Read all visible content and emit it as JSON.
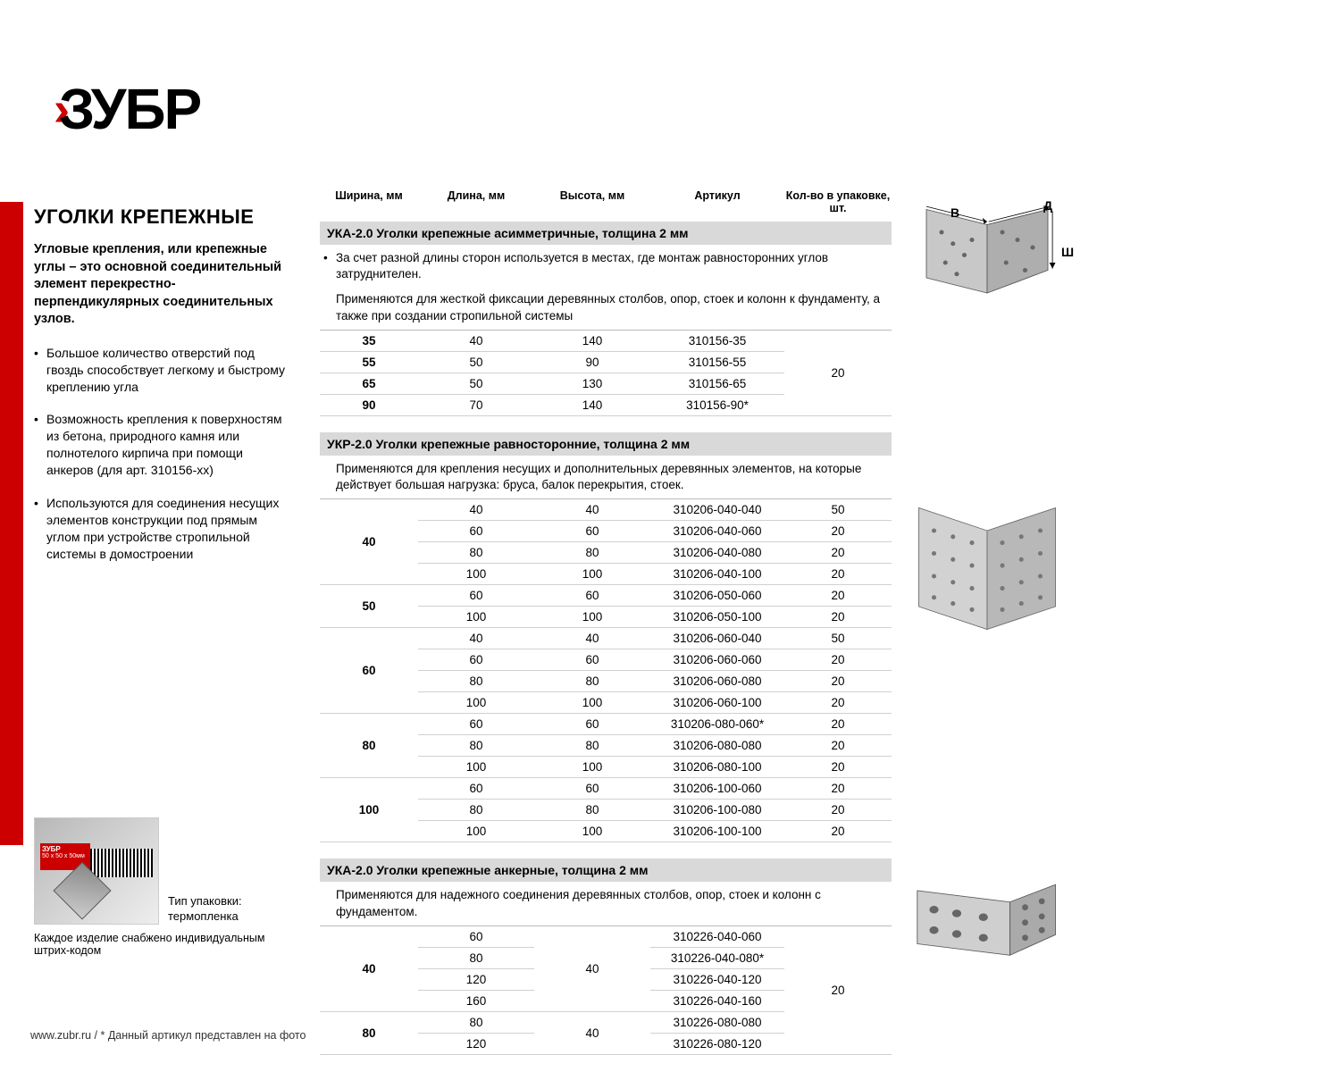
{
  "logo": {
    "brand": "ЗУБР"
  },
  "sidebar": {
    "title": "УГОЛКИ КРЕПЕЖНЫЕ",
    "intro": "Угловые крепления, или крепежные углы – это основной соединительный элемент перекрестно-перпендикулярных соединительных узлов.",
    "bullets": [
      "Большое количество отверстий под гвоздь способствует легкому и быстрому креплению угла",
      "Возможность крепления к поверхностям из бетона, природного камня или полнотелого кирпича при помощи анкеров (для арт. 310156-хх)",
      "Используются для соединения несущих элементов конструкции под прямым углом при устройстве стропильной системы в домостроении"
    ]
  },
  "packaging": {
    "label": "Тип упаковки:",
    "type": "термопленка",
    "note": "Каждое изделие снабжено индивидуальным штрих-кодом",
    "badge_brand": "ЗУБР",
    "badge_line2": "50 x 50 x 50мм"
  },
  "footer": "www.zubr.ru    /    * Данный артикул представлен на фото",
  "columns": [
    "Ширина, мм",
    "Длина, мм",
    "Высота, мм",
    "Артикул",
    "Кол-во в упаковке, шт."
  ],
  "sections": [
    {
      "title": "УКА-2.0  Уголки крепежные асимметричные, толщина 2 мм",
      "desc_bullet": "За счет разной длины сторон используется в местах, где монтаж равносторонних углов затруднителен.",
      "desc_plain": "Применяются для жесткой фиксации деревянных столбов, опор, стоек и колонн к фундаменту, а также при создании стропильной системы",
      "rows": [
        {
          "w": "35",
          "l": "40",
          "h": "140",
          "art": "310156-35",
          "qty": "20",
          "qty_span": 4
        },
        {
          "w": "55",
          "l": "50",
          "h": "90",
          "art": "310156-55"
        },
        {
          "w": "65",
          "l": "50",
          "h": "130",
          "art": "310156-65"
        },
        {
          "w": "90",
          "l": "70",
          "h": "140",
          "art": "310156-90*"
        }
      ]
    },
    {
      "title": "УКР-2.0  Уголки крепежные равносторонние, толщина 2 мм",
      "desc_plain": "Применяются для крепления несущих и дополнительных деревянных элементов, на которые действует большая нагрузка: бруса, балок перекрытия, стоек.",
      "rows": [
        {
          "w": "40",
          "w_span": 4,
          "l": "40",
          "h": "40",
          "art": "310206-040-040",
          "qty": "50"
        },
        {
          "l": "60",
          "h": "60",
          "art": "310206-040-060",
          "qty": "20"
        },
        {
          "l": "80",
          "h": "80",
          "art": "310206-040-080",
          "qty": "20"
        },
        {
          "l": "100",
          "h": "100",
          "art": "310206-040-100",
          "qty": "20"
        },
        {
          "w": "50",
          "w_span": 2,
          "l": "60",
          "h": "60",
          "art": "310206-050-060",
          "qty": "20"
        },
        {
          "l": "100",
          "h": "100",
          "art": "310206-050-100",
          "qty": "20"
        },
        {
          "w": "60",
          "w_span": 4,
          "l": "40",
          "h": "40",
          "art": "310206-060-040",
          "qty": "50"
        },
        {
          "l": "60",
          "h": "60",
          "art": "310206-060-060",
          "qty": "20"
        },
        {
          "l": "80",
          "h": "80",
          "art": "310206-060-080",
          "qty": "20"
        },
        {
          "l": "100",
          "h": "100",
          "art": "310206-060-100",
          "qty": "20"
        },
        {
          "w": "80",
          "w_span": 3,
          "l": "60",
          "h": "60",
          "art": "310206-080-060*",
          "qty": "20"
        },
        {
          "l": "80",
          "h": "80",
          "art": "310206-080-080",
          "qty": "20"
        },
        {
          "l": "100",
          "h": "100",
          "art": "310206-080-100",
          "qty": "20"
        },
        {
          "w": "100",
          "w_span": 3,
          "l": "60",
          "h": "60",
          "art": "310206-100-060",
          "qty": "20"
        },
        {
          "l": "80",
          "h": "80",
          "art": "310206-100-080",
          "qty": "20"
        },
        {
          "l": "100",
          "h": "100",
          "art": "310206-100-100",
          "qty": "20"
        }
      ]
    },
    {
      "title": "УКА-2.0  Уголки крепежные анкерные, толщина 2 мм",
      "desc_plain": "Применяются для надежного соединения деревянных столбов, опор, стоек и колонн с фундаментом.",
      "rows": [
        {
          "w": "40",
          "w_span": 4,
          "l": "60",
          "h": "40",
          "h_span": 4,
          "art": "310226-040-060",
          "qty": "20",
          "qty_span": 6
        },
        {
          "l": "80",
          "art": "310226-040-080*"
        },
        {
          "l": "120",
          "art": "310226-040-120"
        },
        {
          "l": "160",
          "art": "310226-040-160"
        },
        {
          "w": "80",
          "w_span": 2,
          "l": "80",
          "h": "40",
          "h_span": 2,
          "art": "310226-080-080"
        },
        {
          "l": "120",
          "art": "310226-080-120"
        }
      ]
    }
  ],
  "dim_labels": {
    "B": "В",
    "D": "Д",
    "Sh": "Ш"
  }
}
